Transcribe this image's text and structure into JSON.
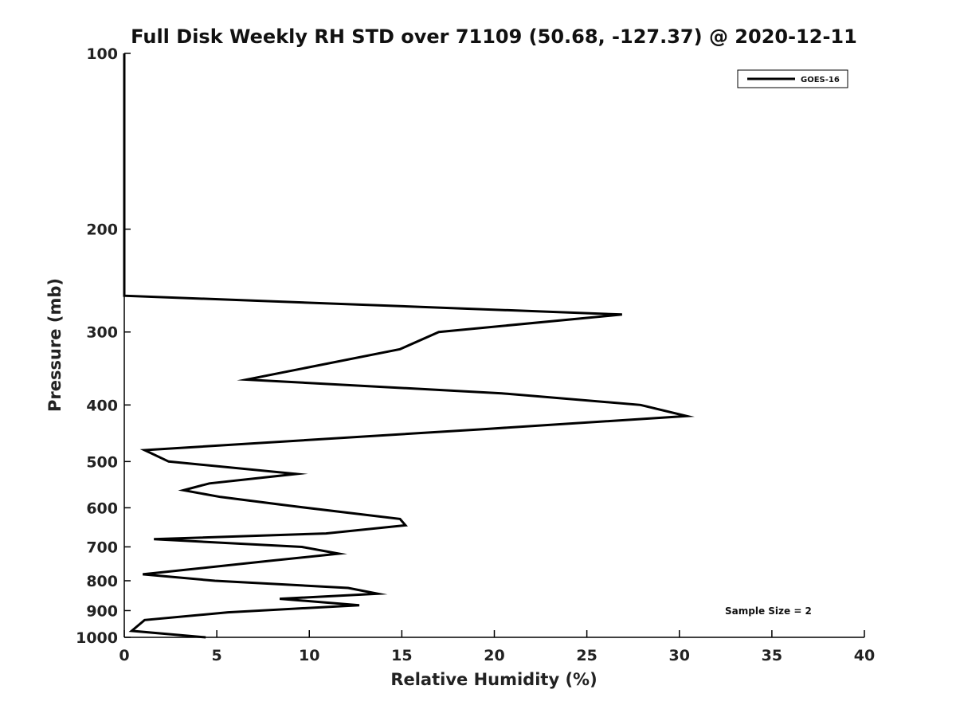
{
  "chart_data": {
    "type": "line",
    "title": "Full Disk Weekly RH STD over 71109 (50.68, -127.37) @ 2020-12-11",
    "xlabel": "Relative Humidity (%)",
    "ylabel": "Pressure (mb)",
    "xlim": [
      0,
      40
    ],
    "ylim": [
      100,
      1000
    ],
    "y_scale": "log",
    "y_reversed": true,
    "x_ticks": [
      0,
      5,
      10,
      15,
      20,
      25,
      30,
      35,
      40
    ],
    "y_ticks": [
      100,
      200,
      300,
      400,
      500,
      600,
      700,
      800,
      900,
      1000
    ],
    "grid": false,
    "legend_position": "top-right",
    "annotation": "Sample Size = 2",
    "series": [
      {
        "name": "GOES-16",
        "color": "#000000",
        "points": [
          [
            0.0,
            100
          ],
          [
            0.0,
            150
          ],
          [
            0.0,
            200
          ],
          [
            0.0,
            250
          ],
          [
            0.0,
            260
          ],
          [
            26.9,
            280
          ],
          [
            17.0,
            300
          ],
          [
            14.9,
            321
          ],
          [
            6.6,
            362
          ],
          [
            20.4,
            382
          ],
          [
            27.9,
            400
          ],
          [
            30.4,
            418
          ],
          [
            19.4,
            440
          ],
          [
            1.1,
            478
          ],
          [
            2.4,
            500
          ],
          [
            9.3,
            525
          ],
          [
            4.6,
            545
          ],
          [
            3.2,
            560
          ],
          [
            5.2,
            575
          ],
          [
            9.1,
            596
          ],
          [
            14.9,
            627
          ],
          [
            15.2,
            643
          ],
          [
            10.9,
            664
          ],
          [
            1.6,
            679
          ],
          [
            9.6,
            700
          ],
          [
            11.6,
            719
          ],
          [
            7.8,
            740
          ],
          [
            1.0,
            780
          ],
          [
            4.9,
            800
          ],
          [
            12.1,
            823
          ],
          [
            13.7,
            842
          ],
          [
            8.4,
            859
          ],
          [
            12.7,
            881
          ],
          [
            5.6,
            906
          ],
          [
            1.1,
            934
          ],
          [
            0.4,
            975
          ],
          [
            4.4,
            1000
          ]
        ]
      }
    ]
  }
}
